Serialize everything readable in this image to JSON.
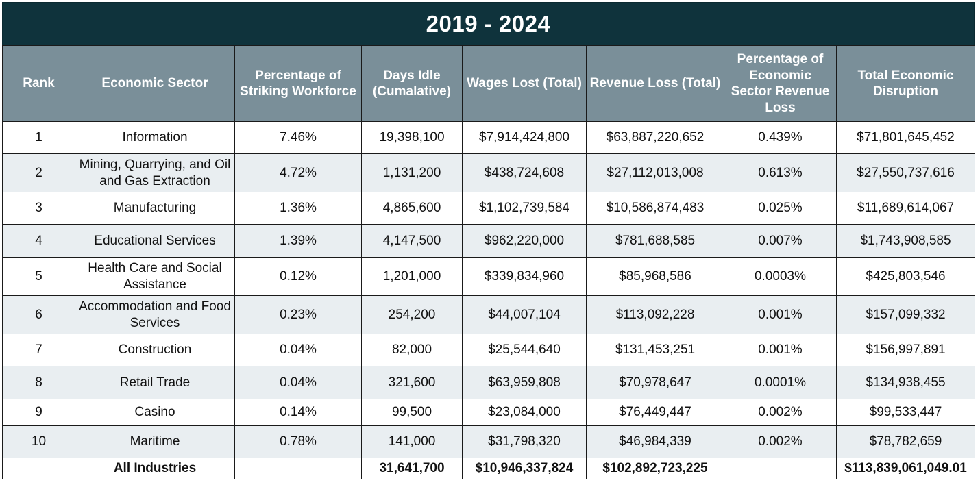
{
  "title": "2019 - 2024",
  "headers": {
    "rank": "Rank",
    "sector": "Economic Sector",
    "pct_workforce": "Percentage of Striking Workforce",
    "days_idle": "Days Idle (Cumalative)",
    "wages_lost": "Wages Lost (Total)",
    "revenue_loss": "Revenue Loss (Total)",
    "pct_revenue_loss": "Percentage of Economic Sector Revenue Loss",
    "total_disruption": "Total Economic Disruption"
  },
  "rows": [
    {
      "rank": "1",
      "sector": "Information",
      "pct_workforce": "7.46%",
      "days_idle": "19,398,100",
      "wages_lost": "$7,914,424,800",
      "revenue_loss": "$63,887,220,652",
      "pct_revenue_loss": "0.439%",
      "total_disruption": "$71,801,645,452"
    },
    {
      "rank": "2",
      "sector": "Mining, Quarrying, and Oil and Gas Extraction",
      "pct_workforce": "4.72%",
      "days_idle": "1,131,200",
      "wages_lost": "$438,724,608",
      "revenue_loss": "$27,112,013,008",
      "pct_revenue_loss": "0.613%",
      "total_disruption": "$27,550,737,616"
    },
    {
      "rank": "3",
      "sector": "Manufacturing",
      "pct_workforce": "1.36%",
      "days_idle": "4,865,600",
      "wages_lost": "$1,102,739,584",
      "revenue_loss": "$10,586,874,483",
      "pct_revenue_loss": "0.025%",
      "total_disruption": "$11,689,614,067"
    },
    {
      "rank": "4",
      "sector": "Educational Services",
      "pct_workforce": "1.39%",
      "days_idle": "4,147,500",
      "wages_lost": "$962,220,000",
      "revenue_loss": "$781,688,585",
      "pct_revenue_loss": "0.007%",
      "total_disruption": "$1,743,908,585"
    },
    {
      "rank": "5",
      "sector": "Health Care and Social Assistance",
      "pct_workforce": "0.12%",
      "days_idle": "1,201,000",
      "wages_lost": "$339,834,960",
      "revenue_loss": "$85,968,586",
      "pct_revenue_loss": "0.0003%",
      "total_disruption": "$425,803,546"
    },
    {
      "rank": "6",
      "sector": "Accommodation and Food Services",
      "pct_workforce": "0.23%",
      "days_idle": "254,200",
      "wages_lost": "$44,007,104",
      "revenue_loss": "$113,092,228",
      "pct_revenue_loss": "0.001%",
      "total_disruption": "$157,099,332"
    },
    {
      "rank": "7",
      "sector": "Construction",
      "pct_workforce": "0.04%",
      "days_idle": "82,000",
      "wages_lost": "$25,544,640",
      "revenue_loss": "$131,453,251",
      "pct_revenue_loss": "0.001%",
      "total_disruption": "$156,997,891"
    },
    {
      "rank": "8",
      "sector": "Retail Trade",
      "pct_workforce": "0.04%",
      "days_idle": "321,600",
      "wages_lost": "$63,959,808",
      "revenue_loss": "$70,978,647",
      "pct_revenue_loss": "0.0001%",
      "total_disruption": "$134,938,455"
    },
    {
      "rank": "9",
      "sector": "Casino",
      "pct_workforce": "0.14%",
      "days_idle": "99,500",
      "wages_lost": "$23,084,000",
      "revenue_loss": "$76,449,447",
      "pct_revenue_loss": "0.002%",
      "total_disruption": "$99,533,447"
    },
    {
      "rank": "10",
      "sector": "Maritime",
      "pct_workforce": "0.78%",
      "days_idle": "141,000",
      "wages_lost": "$31,798,320",
      "revenue_loss": "$46,984,339",
      "pct_revenue_loss": "0.002%",
      "total_disruption": "$78,782,659"
    }
  ],
  "totals": {
    "label": "All Industries",
    "days_idle": "31,641,700",
    "wages_lost": "$10,946,337,824",
    "revenue_loss": "$102,892,723,225",
    "total_disruption": "$113,839,061,049.01"
  },
  "colors": {
    "title_bg": "#0f333c",
    "header_bg": "#7a8f99",
    "row_alt_bg": "#e9eef1"
  }
}
